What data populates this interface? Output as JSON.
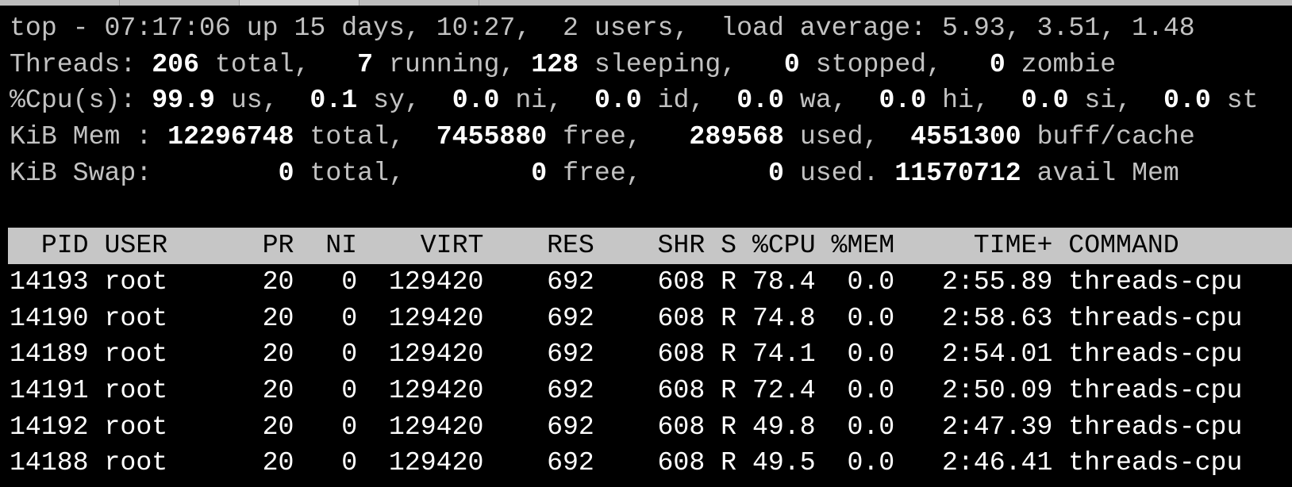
{
  "summary": {
    "line1": "top - 07:17:06 up 15 days, 10:27,  2 users,  load average: 5.93, 3.51, 1.48",
    "threads": {
      "label": "Threads: ",
      "total": "206",
      "total_l": " total, ",
      "running": "  7",
      "running_l": " running, ",
      "sleeping": "128",
      "sleeping_l": " sleeping, ",
      "stopped": "  0",
      "stopped_l": " stopped, ",
      "zombie": "  0",
      "zombie_l": " zombie"
    },
    "cpu": {
      "label": "%Cpu(s): ",
      "us": "99.9",
      "us_l": " us, ",
      "sy": " 0.1",
      "sy_l": " sy, ",
      "ni": " 0.0",
      "ni_l": " ni, ",
      "id": " 0.0",
      "id_l": " id, ",
      "wa": " 0.0",
      "wa_l": " wa, ",
      "hi": " 0.0",
      "hi_l": " hi, ",
      "si": " 0.0",
      "si_l": " si, ",
      "st": " 0.0",
      "st_l": " st"
    },
    "mem": {
      "label": "KiB Mem : ",
      "total": "12296748",
      "total_l": " total, ",
      "free": " 7455880",
      "free_l": " free, ",
      "used": "  289568",
      "used_l": " used, ",
      "cache": " 4551300",
      "cache_l": " buff/cache"
    },
    "swap": {
      "label": "KiB Swap:",
      "total": "        0",
      "total_l": " total, ",
      "free": "       0",
      "free_l": " free, ",
      "used": "       0",
      "used_l": " used. ",
      "avail": "11570712",
      "avail_l": " avail Mem"
    }
  },
  "columns": [
    "PID",
    "USER",
    "PR",
    "NI",
    "VIRT",
    "RES",
    "SHR",
    "S",
    "%CPU",
    "%MEM",
    "TIME+",
    "COMMAND"
  ],
  "rows": [
    [
      "14193",
      "root",
      "20",
      "0",
      "129420",
      "692",
      "608",
      "R",
      "78.4",
      "0.0",
      "2:55.89",
      "threads-cpu"
    ],
    [
      "14190",
      "root",
      "20",
      "0",
      "129420",
      "692",
      "608",
      "R",
      "74.8",
      "0.0",
      "2:58.63",
      "threads-cpu"
    ],
    [
      "14189",
      "root",
      "20",
      "0",
      "129420",
      "692",
      "608",
      "R",
      "74.1",
      "0.0",
      "2:54.01",
      "threads-cpu"
    ],
    [
      "14191",
      "root",
      "20",
      "0",
      "129420",
      "692",
      "608",
      "R",
      "72.4",
      "0.0",
      "2:50.09",
      "threads-cpu"
    ],
    [
      "14192",
      "root",
      "20",
      "0",
      "129420",
      "692",
      "608",
      "R",
      "49.8",
      "0.0",
      "2:47.39",
      "threads-cpu"
    ],
    [
      "14188",
      "root",
      "20",
      "0",
      "129420",
      "692",
      "608",
      "R",
      "49.5",
      "0.0",
      "2:46.41",
      "threads-cpu"
    ]
  ]
}
